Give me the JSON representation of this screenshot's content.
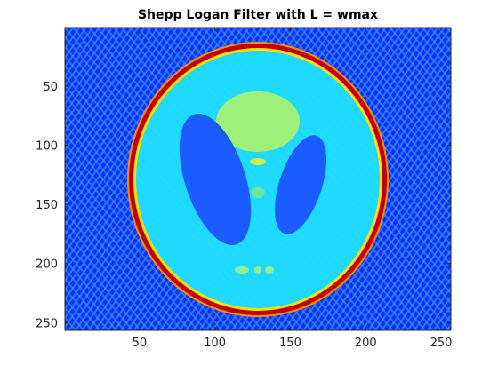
{
  "figure": {
    "title": "Shepp Logan Filter with L = wmax"
  },
  "image": {
    "subject": "Shepp-Logan phantom reconstruction",
    "colormap": "jet",
    "background_color": "#0a2fff",
    "ring_color": "#d40000",
    "interior_color": "#1edcff",
    "large_ellipse_color": "#a8f06a",
    "dark_ellipse_color": "#1a5cff",
    "small_spot_color": "#b8f04a"
  },
  "axes": {
    "x_ticks": [
      "50",
      "100",
      "150",
      "200",
      "250"
    ],
    "y_ticks": [
      "50",
      "100",
      "150",
      "200",
      "250"
    ],
    "x_range": [
      1,
      256
    ],
    "y_range": [
      1,
      256
    ]
  }
}
